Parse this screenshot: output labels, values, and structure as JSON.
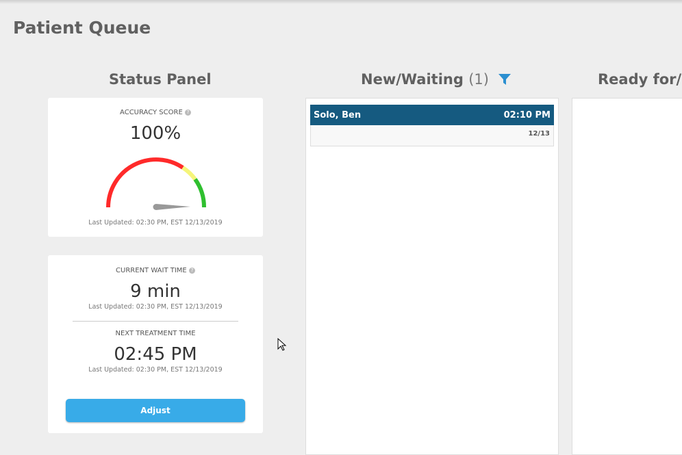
{
  "page_title": "Patient Queue",
  "columns": {
    "status": "Status Panel",
    "new_waiting": "New/Waiting",
    "new_waiting_count": "(1)",
    "ready": "Ready for/w"
  },
  "accuracy": {
    "label": "Accuracy Score",
    "value": "100%",
    "gauge_value": 100,
    "updated": "Last Updated: 02:30 PM, EST 12/13/2019",
    "colors": {
      "red": "#ff2a2a",
      "yellow": "#f5f57a",
      "green": "#2fbf2f"
    }
  },
  "wait": {
    "label": "Current Wait Time",
    "value": "9 min",
    "updated": "Last Updated: 02:30 PM, EST 12/13/2019"
  },
  "next": {
    "label": "Next Treatment Time",
    "value": "02:45 PM",
    "updated": "Last Updated: 02:30 PM, EST 12/13/2019",
    "button": "Adjust"
  },
  "patients": [
    {
      "name": "Solo, Ben",
      "time": "02:10 PM",
      "date": "12/13"
    }
  ],
  "help_icon": "?"
}
